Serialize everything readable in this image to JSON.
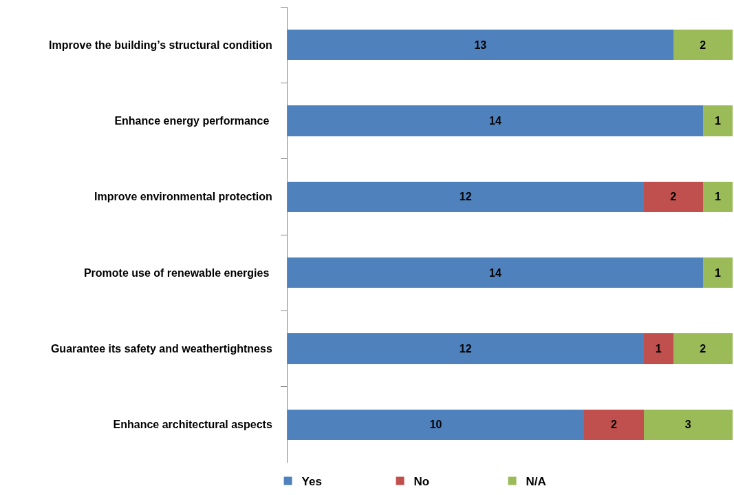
{
  "chart_data": {
    "type": "bar",
    "orientation": "horizontal",
    "stacked": true,
    "categories": [
      "Improve the building’s structural condition",
      "Enhance energy performance ",
      "Improve environmental protection",
      "Promote use of renewable energies ",
      "Guarantee its safety and weathertightness",
      "Enhance architectural aspects"
    ],
    "series": [
      {
        "name": "Yes",
        "color": "#4f81bd",
        "values": [
          13,
          14,
          12,
          14,
          12,
          10
        ]
      },
      {
        "name": "No",
        "color": "#c0504d",
        "values": [
          null,
          null,
          2,
          null,
          1,
          2
        ]
      },
      {
        "name": "N/A",
        "color": "#9bbb59",
        "values": [
          2,
          1,
          1,
          1,
          2,
          3
        ]
      }
    ],
    "xlim": [
      0,
      15
    ],
    "data_labels": true,
    "tick_labels": "y",
    "legend": "bottom"
  }
}
